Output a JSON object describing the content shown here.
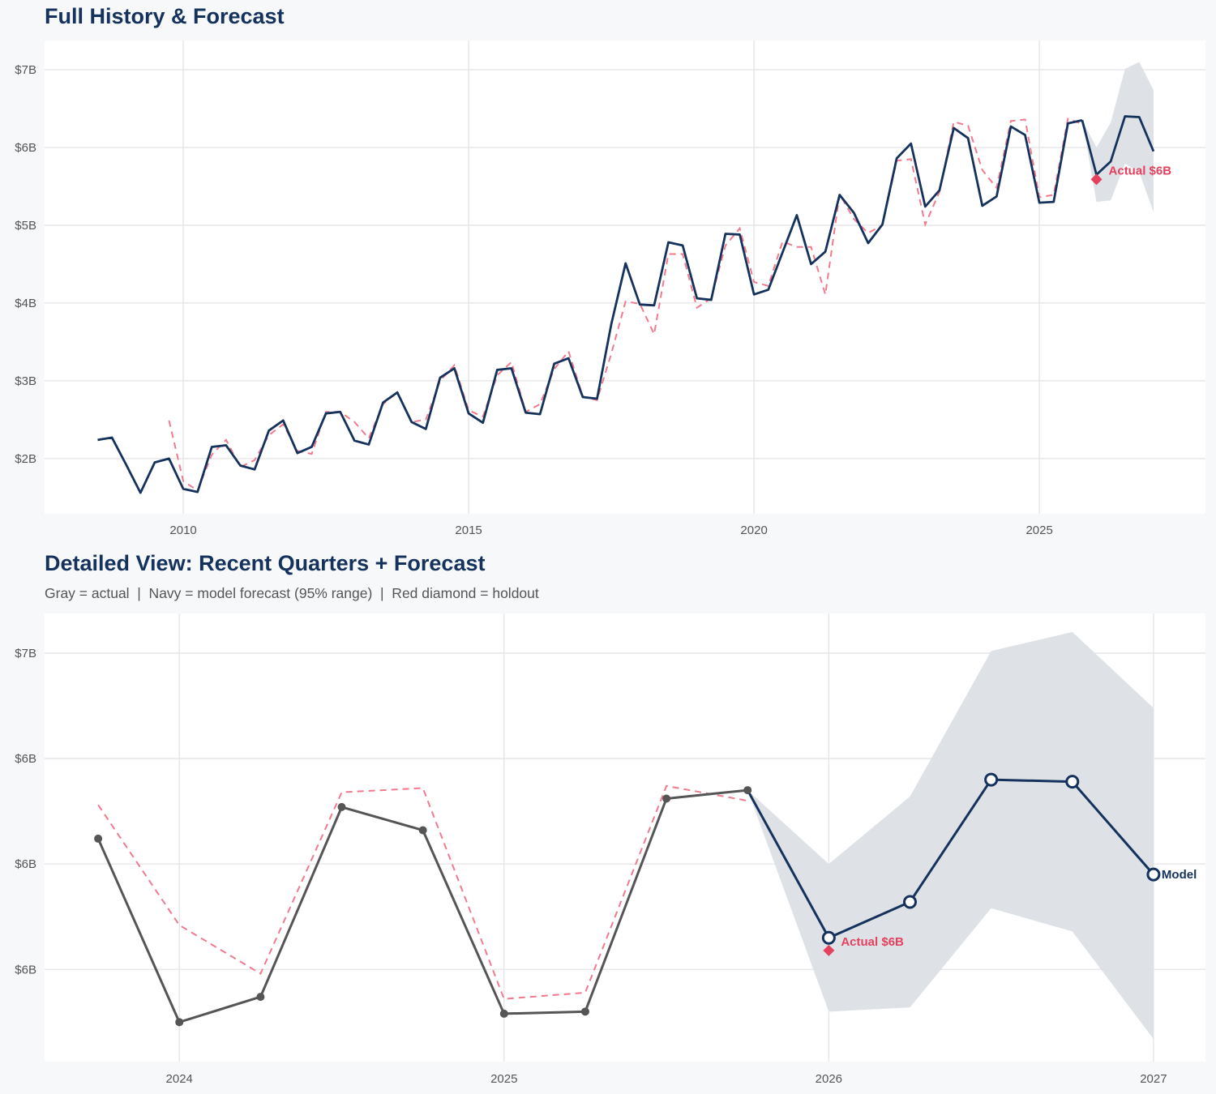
{
  "colors": {
    "background": "#f7f8fa",
    "panel": "#ffffff",
    "grid": "#e4e4e6",
    "navy": "#14325c",
    "actual_gray": "#555555",
    "model_fit_red": "#f07a8e",
    "holdout_red": "#e5415e",
    "band": "#dce0e6",
    "tick_text": "#555555"
  },
  "chart_data": [
    {
      "type": "line",
      "title": "Full History & Forecast",
      "xlim": [
        2007.57,
        2027.91
      ],
      "ylim": [
        1.29,
        7.375
      ],
      "grid": true,
      "x_ticks": [
        {
          "value": 2010,
          "label": "2010"
        },
        {
          "value": 2015,
          "label": "2015"
        },
        {
          "value": 2020,
          "label": "2020"
        },
        {
          "value": 2025,
          "label": "2025"
        }
      ],
      "y_ticks": [
        {
          "value": 2,
          "label": "$2B"
        },
        {
          "value": 3,
          "label": "$3B"
        },
        {
          "value": 4,
          "label": "$4B"
        },
        {
          "value": 5,
          "label": "$5B"
        },
        {
          "value": 6,
          "label": "$6B"
        },
        {
          "value": 7,
          "label": "$7B"
        }
      ],
      "actual": {
        "style": "navy-solid",
        "x": [
          "2008Q3",
          "2008Q4",
          "2009Q1",
          "2009Q2",
          "2009Q3",
          "2009Q4",
          "2010Q1",
          "2010Q2",
          "2010Q3",
          "2010Q4",
          "2011Q1",
          "2011Q2",
          "2011Q3",
          "2011Q4",
          "2012Q1",
          "2012Q2",
          "2012Q3",
          "2012Q4",
          "2013Q1",
          "2013Q2",
          "2013Q3",
          "2013Q4",
          "2014Q1",
          "2014Q2",
          "2014Q3",
          "2014Q4",
          "2015Q1",
          "2015Q2",
          "2015Q3",
          "2015Q4",
          "2016Q1",
          "2016Q2",
          "2016Q3",
          "2016Q4",
          "2017Q1",
          "2017Q2",
          "2017Q3",
          "2017Q4",
          "2018Q1",
          "2018Q2",
          "2018Q3",
          "2018Q4",
          "2019Q1",
          "2019Q2",
          "2019Q3",
          "2019Q4",
          "2020Q1",
          "2020Q2",
          "2020Q3",
          "2020Q4",
          "2021Q1",
          "2021Q2",
          "2021Q3",
          "2021Q4",
          "2022Q1",
          "2022Q2",
          "2022Q3",
          "2022Q4",
          "2023Q1",
          "2023Q2",
          "2023Q3",
          "2023Q4",
          "2024Q1",
          "2024Q2",
          "2024Q3",
          "2024Q4",
          "2025Q1",
          "2025Q2",
          "2025Q3",
          "2025Q4"
        ],
        "y": [
          2.24,
          2.27,
          1.92,
          1.56,
          1.95,
          2.0,
          1.61,
          1.57,
          2.15,
          2.17,
          1.91,
          1.86,
          2.36,
          2.49,
          2.07,
          2.15,
          2.58,
          2.6,
          2.23,
          2.18,
          2.72,
          2.85,
          2.47,
          2.38,
          3.04,
          3.16,
          2.58,
          2.46,
          3.14,
          3.16,
          2.59,
          2.57,
          3.22,
          3.29,
          2.79,
          2.77,
          3.73,
          4.51,
          3.98,
          3.97,
          4.78,
          4.74,
          4.06,
          4.04,
          4.89,
          4.88,
          4.11,
          4.17,
          4.65,
          5.13,
          4.5,
          4.66,
          5.39,
          5.16,
          4.77,
          5.01,
          5.86,
          6.05,
          5.24,
          5.45,
          6.25,
          6.12,
          5.25,
          5.37,
          6.27,
          6.16,
          5.29,
          5.3,
          6.31,
          6.35
        ]
      },
      "model_fit": {
        "style": "red-dashed",
        "x": [
          "2009Q4",
          "2010Q1",
          "2010Q2",
          "2010Q3",
          "2010Q4",
          "2011Q1",
          "2011Q2",
          "2011Q3",
          "2011Q4",
          "2012Q1",
          "2012Q2",
          "2012Q3",
          "2012Q4",
          "2013Q1",
          "2013Q2",
          "2013Q3",
          "2013Q4",
          "2014Q1",
          "2014Q2",
          "2014Q3",
          "2014Q4",
          "2015Q1",
          "2015Q2",
          "2015Q3",
          "2015Q4",
          "2016Q1",
          "2016Q2",
          "2016Q3",
          "2016Q4",
          "2017Q1",
          "2017Q2",
          "2017Q3",
          "2017Q4",
          "2018Q1",
          "2018Q2",
          "2018Q3",
          "2018Q4",
          "2019Q1",
          "2019Q2",
          "2019Q3",
          "2019Q4",
          "2020Q1",
          "2020Q2",
          "2020Q3",
          "2020Q4",
          "2021Q1",
          "2021Q2",
          "2021Q3",
          "2021Q4",
          "2022Q1",
          "2022Q2",
          "2022Q3",
          "2022Q4",
          "2023Q1",
          "2023Q2",
          "2023Q3",
          "2023Q4",
          "2024Q1",
          "2024Q2",
          "2024Q3",
          "2024Q4",
          "2025Q1",
          "2025Q2",
          "2025Q3",
          "2025Q4"
        ],
        "y": [
          2.49,
          1.71,
          1.59,
          2.05,
          2.24,
          1.89,
          1.98,
          2.3,
          2.44,
          2.1,
          2.06,
          2.6,
          2.6,
          2.47,
          2.26,
          2.7,
          2.85,
          2.47,
          2.5,
          3.0,
          3.2,
          2.62,
          2.54,
          3.07,
          3.24,
          2.6,
          2.7,
          3.15,
          3.38,
          2.8,
          2.75,
          3.35,
          4.02,
          3.99,
          3.6,
          4.63,
          4.63,
          3.94,
          4.06,
          4.74,
          4.96,
          4.27,
          4.22,
          4.79,
          4.72,
          4.72,
          4.11,
          5.4,
          5.08,
          4.9,
          5.0,
          5.83,
          5.85,
          5.01,
          5.43,
          6.33,
          6.28,
          5.71,
          5.48,
          6.34,
          6.36,
          5.36,
          5.39,
          6.37,
          6.3
        ]
      },
      "forecast": {
        "style": "navy-solid",
        "x": [
          "2026Q1",
          "2026Q2",
          "2026Q3",
          "2026Q4",
          "2027Q1"
        ],
        "y": [
          5.65,
          5.82,
          6.4,
          6.39,
          5.95
        ]
      },
      "band_95": {
        "x": [
          "2025Q4",
          "2026Q1",
          "2026Q2",
          "2026Q3",
          "2026Q4",
          "2027Q1"
        ],
        "upper": [
          6.35,
          6.0,
          6.32,
          7.01,
          7.1,
          6.74
        ],
        "lower": [
          6.35,
          5.3,
          5.32,
          5.79,
          5.68,
          5.17
        ]
      },
      "holdout": {
        "x": "2026Q1",
        "y": 5.59,
        "label": "Actual $6B"
      }
    },
    {
      "type": "line",
      "title": "Detailed View: Recent Quarters + Forecast",
      "subtitle": "Gray = actual  |  Navy = model forecast (95% range)  |  Red diamond = holdout",
      "xlim": [
        2023.585,
        2027.16
      ],
      "ylim": [
        5.063,
        7.188
      ],
      "grid": true,
      "x_ticks": [
        {
          "value": 2024,
          "label": "2024"
        },
        {
          "value": 2025,
          "label": "2025"
        },
        {
          "value": 2026,
          "label": "2026"
        },
        {
          "value": 2027,
          "label": "2027"
        }
      ],
      "y_ticks": [
        {
          "value": 5.5,
          "label": "$6B"
        },
        {
          "value": 6.0,
          "label": "$6B"
        },
        {
          "value": 6.5,
          "label": "$6B"
        },
        {
          "value": 7.0,
          "label": "$7B"
        }
      ],
      "actual": {
        "style": "gray-solid-points",
        "x": [
          "2023Q4",
          "2024Q1",
          "2024Q2",
          "2024Q3",
          "2024Q4",
          "2025Q1",
          "2025Q2",
          "2025Q3",
          "2025Q4"
        ],
        "y": [
          6.12,
          5.25,
          5.37,
          6.27,
          6.16,
          5.29,
          5.3,
          6.31,
          6.35
        ]
      },
      "model_fit": {
        "style": "red-dashed",
        "x": [
          "2023Q4",
          "2024Q1",
          "2024Q2",
          "2024Q3",
          "2024Q4",
          "2025Q1",
          "2025Q2",
          "2025Q3",
          "2025Q4"
        ],
        "y": [
          6.28,
          5.71,
          5.48,
          6.34,
          6.36,
          5.36,
          5.39,
          6.37,
          6.3
        ]
      },
      "forecast": {
        "style": "navy-open-points",
        "x": [
          "2026Q1",
          "2026Q2",
          "2026Q3",
          "2026Q4",
          "2027Q1"
        ],
        "y": [
          5.65,
          5.82,
          6.4,
          6.39,
          5.95
        ],
        "end_label": "Model"
      },
      "band_95": {
        "x": [
          "2025Q4",
          "2026Q1",
          "2026Q2",
          "2026Q3",
          "2026Q4",
          "2027Q1"
        ],
        "upper": [
          6.35,
          6.0,
          6.32,
          7.01,
          7.1,
          6.74
        ],
        "lower": [
          6.35,
          5.3,
          5.32,
          5.79,
          5.68,
          5.17
        ]
      },
      "holdout": {
        "x": "2026Q1",
        "y": 5.59,
        "label": "Actual $6B"
      }
    }
  ]
}
